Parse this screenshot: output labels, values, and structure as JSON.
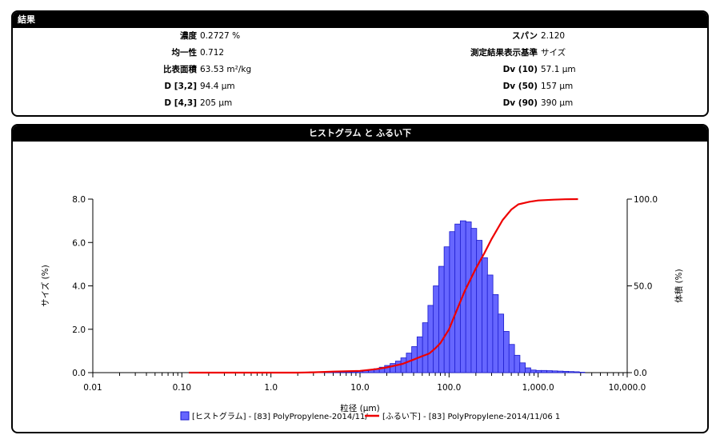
{
  "results": {
    "title": "結果",
    "left": [
      {
        "label": "濃度",
        "value": "0.2727 %"
      },
      {
        "label": "均一性",
        "value": "0.712"
      },
      {
        "label": "比表面積",
        "value": "63.53 m²/kg"
      },
      {
        "label": "D [3,2]",
        "value": "94.4 µm"
      },
      {
        "label": "D [4,3]",
        "value": "205 µm"
      }
    ],
    "right": [
      {
        "label": "スパン",
        "value": "2.120"
      },
      {
        "label": "測定結果表示基準",
        "value": "サイズ"
      },
      {
        "label": "Dv (10)",
        "value": "57.1 µm"
      },
      {
        "label": "Dv (50)",
        "value": "157 µm"
      },
      {
        "label": "Dv (90)",
        "value": "390 µm"
      }
    ]
  },
  "chart_panel": {
    "title": "ヒストグラム と ふるい下"
  },
  "chart_data": {
    "type": "bar",
    "title": "ヒストグラム と ふるい下",
    "xlabel": "粒径 (µm)",
    "ylabel": "サイズ (%)",
    "y2label": "体積 (%)",
    "x_scale": "log",
    "xlim": [
      0.01,
      10000
    ],
    "ylim": [
      0,
      8
    ],
    "y2lim": [
      0,
      100
    ],
    "x_ticks": [
      0.01,
      0.1,
      1,
      10,
      100,
      1000,
      10000
    ],
    "x_tick_labels": [
      "0.01",
      "0.10",
      "1.0",
      "10.0",
      "100.0",
      "1,000.0",
      "10,000.0"
    ],
    "y_ticks": [
      0,
      2,
      4,
      6,
      8
    ],
    "y_tick_labels": [
      "0.0",
      "2.0",
      "4.0",
      "6.0",
      "8.0"
    ],
    "y2_ticks": [
      0,
      50,
      100
    ],
    "y2_tick_labels": [
      "0.0",
      "50.0",
      "100.0"
    ],
    "legend_position": "bottom",
    "series": [
      {
        "name": "[ヒストグラム] - [83] PolyPropylene-2014/11/",
        "kind": "histogram",
        "color": "#6666ff",
        "edge_color": "#1a1acc",
        "x": [
          2.5,
          2.9,
          3.3,
          3.8,
          4.4,
          5.0,
          5.8,
          6.7,
          7.7,
          8.8,
          10.1,
          11.6,
          13.4,
          15.4,
          17.7,
          20.3,
          23.4,
          26.9,
          30.9,
          35.6,
          40.9,
          47.0,
          54.1,
          62.2,
          71.5,
          82.2,
          94.5,
          108.7,
          125.0,
          143.7,
          165.3,
          190.0,
          218.5,
          251.3,
          289.0,
          332.3,
          382.1,
          439.4,
          505.3,
          581.1,
          668.2,
          768.4,
          883.7,
          1016.2,
          1168.6,
          1343.9,
          1545.4,
          1777.2,
          2043.8,
          2350.3,
          2702.8,
          3108.2
        ],
        "values": [
          0.02,
          0.03,
          0.04,
          0.04,
          0.04,
          0.04,
          0.03,
          0.03,
          0.03,
          0.04,
          0.06,
          0.09,
          0.13,
          0.18,
          0.25,
          0.33,
          0.42,
          0.53,
          0.68,
          0.9,
          1.2,
          1.65,
          2.3,
          3.1,
          4.0,
          4.9,
          5.8,
          6.5,
          6.85,
          7.0,
          6.95,
          6.65,
          6.1,
          5.3,
          4.5,
          3.6,
          2.7,
          1.9,
          1.3,
          0.8,
          0.45,
          0.22,
          0.12,
          0.1,
          0.1,
          0.09,
          0.08,
          0.07,
          0.06,
          0.05,
          0.04,
          0.02
        ]
      },
      {
        "name": "[ふるい下] - [83] PolyPropylene-2014/11/06 1",
        "kind": "line",
        "axis": "right",
        "color": "#ee0000",
        "x": [
          0.12,
          0.5,
          1,
          2,
          3,
          5,
          10,
          15,
          20,
          30,
          40,
          50,
          60,
          70,
          80,
          100,
          120,
          150,
          200,
          250,
          300,
          400,
          500,
          600,
          800,
          1000,
          1500,
          2000,
          2800
        ],
        "values": [
          0,
          0,
          0,
          0,
          0.2,
          0.6,
          1,
          2,
          3,
          5,
          7.5,
          9.5,
          11,
          14,
          17,
          25,
          35,
          47,
          60,
          69,
          77,
          88,
          94,
          97,
          98.5,
          99.2,
          99.7,
          99.9,
          100
        ]
      }
    ]
  }
}
